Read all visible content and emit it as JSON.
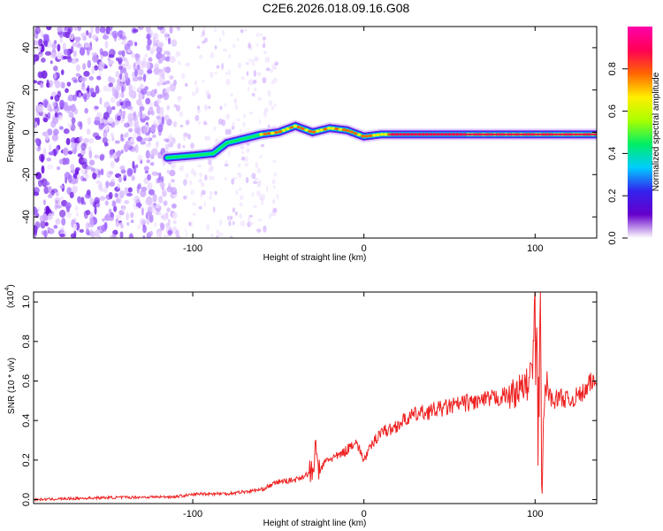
{
  "figure_title": "C2E6.2026.018.09.16.G08",
  "chart_data": [
    {
      "type": "heatmap",
      "title": "",
      "xlabel": "Height of straight line (km)",
      "ylabel": "Frequency (Hz)",
      "xlim": [
        -193,
        136
      ],
      "ylim": [
        -50,
        50
      ],
      "xticks": [
        -100,
        0,
        100
      ],
      "yticks": [
        -40,
        -20,
        0,
        20,
        40
      ],
      "colorbar": {
        "label": "Normalized spectral amplitude",
        "range": [
          0,
          1
        ],
        "ticks": [
          0.0,
          0.2,
          0.4,
          0.6,
          0.8
        ],
        "colors": [
          "#ffffff",
          "#6600cc",
          "#3322ee",
          "#00ccff",
          "#00ee66",
          "#aaff00",
          "#ffee00",
          "#ff6600",
          "#ff0055",
          "#ff00aa"
        ]
      },
      "ridge": {
        "x": [
          -115,
          -100,
          -88,
          -80,
          -70,
          -60,
          -50,
          -40,
          -30,
          -20,
          -10,
          0,
          10,
          20,
          40,
          60,
          80,
          95,
          100,
          105,
          120,
          136
        ],
        "y": [
          -12,
          -11,
          -10,
          -5,
          -3,
          -1,
          0,
          3,
          0,
          2,
          1,
          -2,
          -1,
          -1,
          -1,
          -1,
          -1,
          -1,
          -1,
          -1,
          -1,
          -1
        ]
      },
      "noise_region": [
        -193,
        -110
      ]
    },
    {
      "type": "line",
      "title": "",
      "xlabel": "Height of straight line (km)",
      "ylabel": "SNR (10 * v/v)",
      "y_multiplier": "(x10",
      "y_multiplier_exp": "4",
      "y_multiplier_close": ")",
      "xlim": [
        -193,
        136
      ],
      "ylim": [
        -0.02,
        1.05
      ],
      "xticks": [
        -100,
        0,
        100
      ],
      "yticks": [
        0.0,
        0.2,
        0.4,
        0.6,
        0.8,
        1.0
      ],
      "color": "#ee2222",
      "series": [
        {
          "x": [
            -193,
            -150,
            -110,
            -95,
            -80,
            -60,
            -50,
            -40,
            -30,
            -28,
            -26,
            -22,
            -15,
            -10,
            -5,
            0,
            5,
            10,
            15,
            20,
            25,
            30,
            40,
            50,
            60,
            70,
            80,
            85,
            90,
            95,
            98,
            100,
            102,
            103,
            104,
            106,
            110,
            115,
            120,
            130,
            133,
            136
          ],
          "y": [
            0.0,
            0.01,
            0.015,
            0.03,
            0.03,
            0.05,
            0.09,
            0.1,
            0.14,
            0.25,
            0.14,
            0.2,
            0.22,
            0.25,
            0.3,
            0.2,
            0.28,
            0.35,
            0.35,
            0.38,
            0.41,
            0.43,
            0.45,
            0.47,
            0.49,
            0.5,
            0.52,
            0.53,
            0.55,
            0.58,
            0.62,
            0.9,
            0.3,
            1.05,
            0.05,
            0.6,
            0.5,
            0.52,
            0.5,
            0.55,
            0.6,
            0.58
          ]
        }
      ]
    }
  ]
}
